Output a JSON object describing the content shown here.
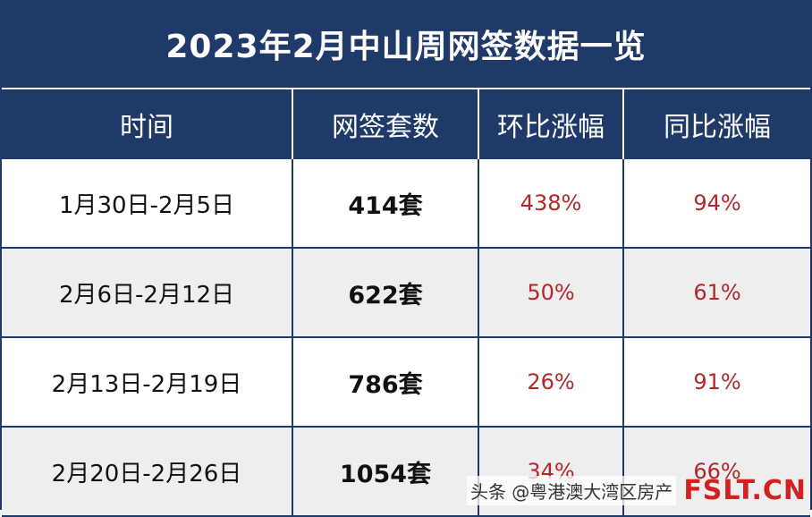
{
  "title": "2023年2月中山周网签数据一览",
  "headers": [
    "时间",
    "网签套数",
    "环比涨幅",
    "同比涨幅"
  ],
  "rows": [
    {
      "period": "1月30日-2月5日",
      "count": "414套",
      "mom": "438%",
      "yoy": "94%"
    },
    {
      "period": "2月6日-2月12日",
      "count": "622套",
      "mom": "50%",
      "yoy": "61%"
    },
    {
      "period": "2月13日-2月19日",
      "count": "786套",
      "mom": "26%",
      "yoy": "91%"
    },
    {
      "period": "2月20日-2月26日",
      "count": "1054套",
      "mom": "34%",
      "yoy": "66%"
    }
  ],
  "watermark": {
    "caption": "头条 @粤港澳大湾区房产",
    "logo": "FSLT.CN"
  }
}
